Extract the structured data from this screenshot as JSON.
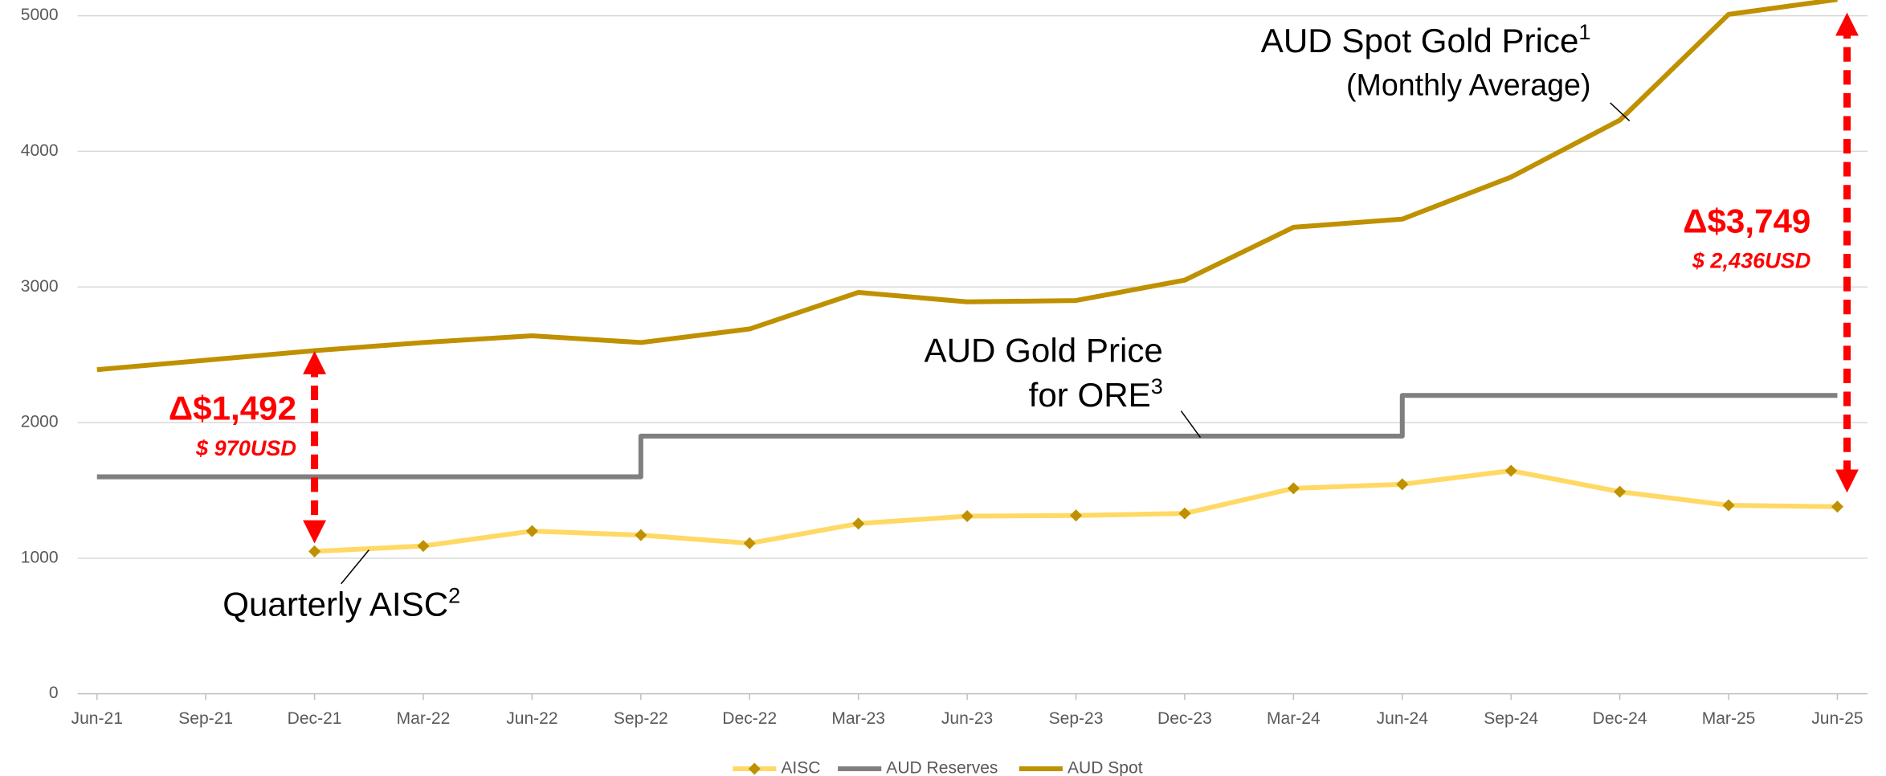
{
  "chart_data": {
    "type": "line",
    "categories": [
      "Jun-21",
      "Sep-21",
      "Dec-21",
      "Mar-22",
      "Jun-22",
      "Sep-22",
      "Dec-22",
      "Mar-23",
      "Jun-23",
      "Sep-23",
      "Dec-23",
      "Mar-24",
      "Jun-24",
      "Sep-24",
      "Dec-24",
      "Mar-25",
      "Jun-25"
    ],
    "series": [
      {
        "name": "AISC",
        "color": "#FFD966",
        "marker_color": "#BF9000",
        "marker": "diamond",
        "values": [
          null,
          null,
          1050,
          1090,
          1200,
          1170,
          1110,
          1255,
          1310,
          1315,
          1330,
          1515,
          1545,
          1645,
          1490,
          1390,
          1380
        ]
      },
      {
        "name": "AUD Reserves",
        "color": "#7F7F7F",
        "step": "pre",
        "values": [
          1600,
          1600,
          1600,
          1600,
          1600,
          1900,
          1900,
          1900,
          1900,
          1900,
          1900,
          1900,
          2200,
          2200,
          2200,
          2200,
          2200
        ]
      },
      {
        "name": "AUD Spot",
        "color": "#BF9000",
        "values": [
          2390,
          2460,
          2530,
          2590,
          2640,
          2590,
          2690,
          2960,
          2890,
          2900,
          3050,
          3440,
          3500,
          3810,
          4230,
          5010,
          5120
        ]
      }
    ],
    "ylim": [
      0,
      5000
    ],
    "yticks": [
      0,
      1000,
      2000,
      3000,
      4000,
      5000
    ],
    "grid": true,
    "legend": "bottom",
    "annotations": {
      "spot": {
        "text": "AUD Spot Gold Price",
        "sup": "1",
        "line2": "(Monthly Average)"
      },
      "reserves": {
        "text": "AUD Gold Price",
        "line2": "for ORE",
        "sup": "3"
      },
      "aisc": {
        "text": "Quarterly AISC",
        "sup": "2"
      },
      "delta1": {
        "aud": "Δ$1,492",
        "usd": "$ 970USD"
      },
      "delta2": {
        "aud": "Δ$3,749",
        "usd": "$ 2,436USD"
      }
    }
  }
}
